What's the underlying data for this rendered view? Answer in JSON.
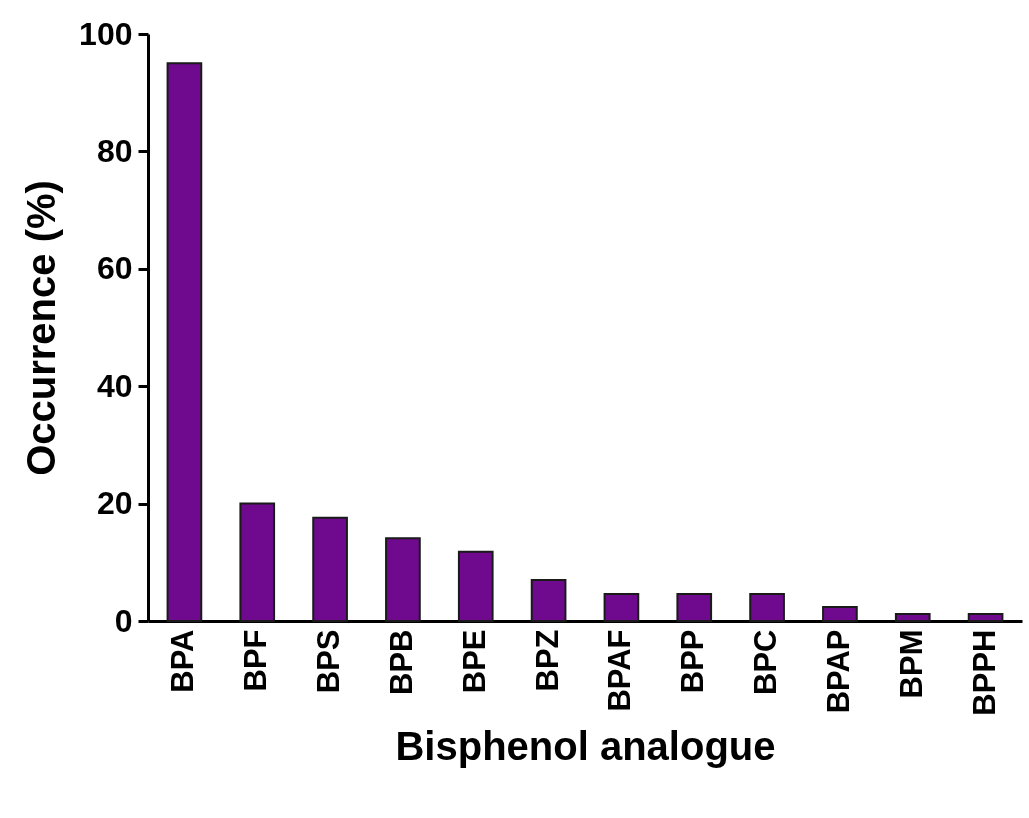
{
  "chart_data": {
    "type": "bar",
    "xlabel": "Bisphenol analogue",
    "ylabel": "Occurrence (%)",
    "categories": [
      "BPA",
      "BPF",
      "BPS",
      "BPB",
      "BPE",
      "BPZ",
      "BPAF",
      "BPP",
      "BPC",
      "BPAP",
      "BPM",
      "BPPH"
    ],
    "values": [
      95,
      20,
      17.6,
      14.1,
      11.8,
      7,
      4.6,
      4.6,
      4.6,
      2.4,
      1.2,
      1.2
    ],
    "color": "#6f0a8f",
    "ylim": [
      0,
      100
    ],
    "yticks": [
      0,
      20,
      40,
      60,
      80,
      100
    ],
    "grid": false
  }
}
